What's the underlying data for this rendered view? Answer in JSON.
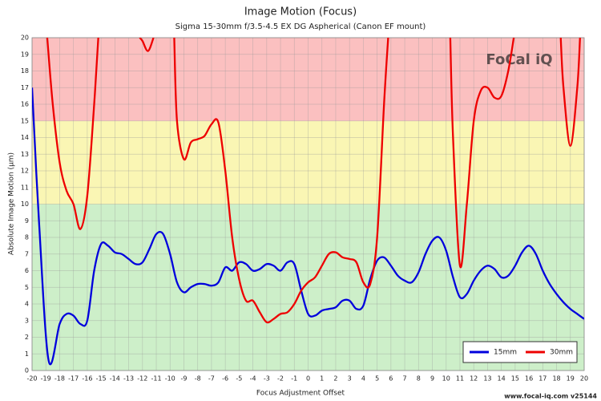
{
  "chart_data": {
    "type": "line",
    "title": "Image Motion (Focus)",
    "subtitle": "Sigma 15-30mm f/3.5-4.5 EX DG Aspherical (Canon EF mount)",
    "x_label": "Focus Adjustment Offset",
    "y_label": "Absolute Image Motion (µm)",
    "watermark": "FoCal iQ",
    "footer": "www.focal-iq.com  v25144",
    "xlim": [
      -20,
      20
    ],
    "ylim": [
      0,
      20
    ],
    "xticks": [
      -20,
      -19,
      -18,
      -17,
      -16,
      -15,
      -14,
      -13,
      -12,
      -11,
      -10,
      -9,
      -8,
      -7,
      -6,
      -5,
      -4,
      -3,
      -2,
      -1,
      0,
      1,
      2,
      3,
      4,
      5,
      6,
      7,
      8,
      9,
      10,
      11,
      12,
      13,
      14,
      15,
      16,
      17,
      18,
      19,
      20
    ],
    "yticks": [
      0,
      1,
      2,
      3,
      4,
      5,
      6,
      7,
      8,
      9,
      10,
      11,
      12,
      13,
      14,
      15,
      16,
      17,
      18,
      19,
      20
    ],
    "grid": true,
    "legend": "bottom-right",
    "zones": [
      {
        "from": 0,
        "to": 10,
        "color": "#cdefc9"
      },
      {
        "from": 10,
        "to": 15,
        "color": "#faf6b4"
      },
      {
        "from": 15,
        "to": 20,
        "color": "#fbc0c0"
      }
    ],
    "series": [
      {
        "name": "15mm",
        "color": "#0000dd",
        "x": [
          -20,
          -19.5,
          -18.8,
          -18,
          -17.5,
          -17,
          -16.5,
          -16,
          -15.5,
          -15,
          -14.5,
          -14,
          -13.5,
          -13,
          -12.5,
          -12,
          -11.5,
          -11,
          -10.5,
          -10,
          -9.5,
          -9,
          -8.5,
          -8,
          -7.5,
          -7,
          -6.5,
          -6,
          -5.5,
          -5,
          -4.5,
          -4,
          -3.5,
          -3,
          -2.5,
          -2,
          -1.5,
          -1,
          -0.5,
          0,
          0.5,
          1,
          1.5,
          2,
          2.5,
          3,
          3.5,
          4,
          4.5,
          5,
          5.5,
          6,
          6.5,
          7,
          7.5,
          8,
          8.5,
          9,
          9.5,
          10,
          10.5,
          11,
          11.5,
          12,
          12.5,
          13,
          13.5,
          14,
          14.5,
          15,
          15.5,
          16,
          16.5,
          17,
          17.5,
          18,
          18.5,
          19,
          19.5,
          20
        ],
        "values": [
          17,
          9,
          0.6,
          2.8,
          3.4,
          3.3,
          2.8,
          3.0,
          6.0,
          7.6,
          7.5,
          7.1,
          7.0,
          6.7,
          6.4,
          6.5,
          7.3,
          8.2,
          8.2,
          7.0,
          5.3,
          4.7,
          5.0,
          5.2,
          5.2,
          5.1,
          5.3,
          6.2,
          6.0,
          6.5,
          6.4,
          6.0,
          6.1,
          6.4,
          6.3,
          6.0,
          6.5,
          6.4,
          4.8,
          3.4,
          3.3,
          3.6,
          3.7,
          3.8,
          4.2,
          4.2,
          3.7,
          3.9,
          5.5,
          6.6,
          6.8,
          6.3,
          5.7,
          5.4,
          5.3,
          5.9,
          7.0,
          7.8,
          8.0,
          7.2,
          5.6,
          4.4,
          4.6,
          5.4,
          6.0,
          6.3,
          6.1,
          5.6,
          5.7,
          6.3,
          7.1,
          7.5,
          7.0,
          6.0,
          5.2,
          4.6,
          4.1,
          3.7,
          3.4,
          3.1
        ]
      },
      {
        "name": "30mm",
        "color": "#ee0000",
        "x": [
          -18.9,
          -18.5,
          -18,
          -17.5,
          -17,
          -16.5,
          -16,
          -15.5,
          -15.2,
          -15,
          -12.2,
          -12,
          -11.6,
          -11.2,
          -11,
          -9.7,
          -9.5,
          -9,
          -8.5,
          -8,
          -7.5,
          -7,
          -6.5,
          -6,
          -5.5,
          -5,
          -4.5,
          -4,
          -3.5,
          -3,
          -2.5,
          -2,
          -1.5,
          -1,
          -0.5,
          0,
          0.5,
          1,
          1.5,
          2,
          2.5,
          3,
          3.5,
          4,
          4.5,
          5,
          5.5,
          5.8,
          6,
          10.3,
          10.5,
          11,
          11.5,
          12,
          12.5,
          13,
          13.5,
          14,
          14.5,
          14.9,
          15,
          18.3,
          18.5,
          19,
          19.5,
          19.7
        ],
        "values": [
          20,
          16,
          12.5,
          10.8,
          10,
          8.5,
          10.5,
          16,
          20,
          null,
          20,
          19.8,
          19.2,
          20,
          null,
          20,
          15,
          12.7,
          13.7,
          13.9,
          14.1,
          14.8,
          14.9,
          12,
          8,
          5.5,
          4.2,
          4.2,
          3.5,
          2.9,
          3.1,
          3.4,
          3.5,
          4.0,
          4.8,
          5.3,
          5.6,
          6.3,
          7.0,
          7.1,
          6.8,
          6.7,
          6.5,
          5.3,
          5.2,
          8,
          16,
          20,
          null,
          20,
          14,
          6.3,
          10,
          15,
          16.8,
          17,
          16.4,
          16.5,
          18,
          20,
          null,
          20,
          17,
          13.5,
          17,
          20
        ]
      }
    ]
  }
}
